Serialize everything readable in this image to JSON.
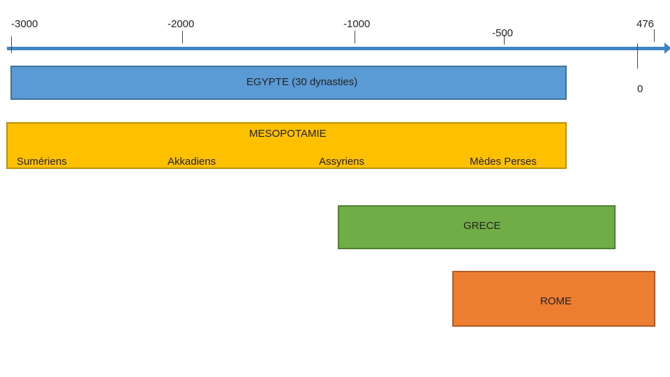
{
  "axis": {
    "ticks": [
      {
        "label": "-3000"
      },
      {
        "label": "-2000"
      },
      {
        "label": "-1000"
      },
      {
        "label": "-500"
      },
      {
        "label": "476"
      }
    ],
    "zero_label": "0",
    "color": "#3d85c6"
  },
  "bands": {
    "egypte": {
      "label": "EGYPTE (30 dynasties)",
      "color": "#5b9bd5"
    },
    "mesopotamie": {
      "label": "MESOPOTAMIE",
      "color": "#ffc000",
      "peoples": [
        "Sumériens",
        "Akkadiens",
        "Assyriens",
        "Mèdes Perses"
      ]
    },
    "grece": {
      "label": "GRECE",
      "color": "#70ad47"
    },
    "rome": {
      "label": "ROME",
      "color": "#ed7d31"
    }
  }
}
